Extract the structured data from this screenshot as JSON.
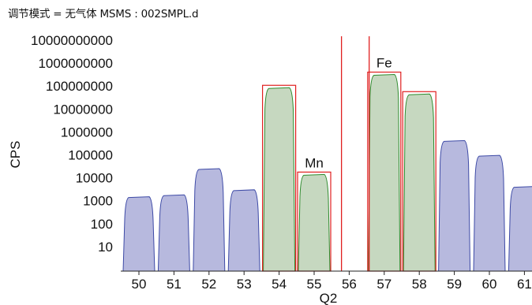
{
  "title": "调节模式 = 无气体 MSMS : 002SMPL.d",
  "chart_data": {
    "type": "area",
    "xlabel": "Q2",
    "ylabel": "CPS",
    "yscale": "log",
    "xlim": [
      49.5,
      61.4
    ],
    "ylim_exp": [
      0,
      10
    ],
    "xticks": [
      50,
      51,
      52,
      53,
      54,
      55,
      56,
      57,
      58,
      59,
      60,
      61
    ],
    "xtick_labels": [
      "50",
      "51",
      "52",
      "53",
      "54",
      "55",
      "56",
      "57",
      "58",
      "59",
      "60",
      "61"
    ],
    "ytick_labels": [
      "10",
      "100",
      "1000",
      "10000",
      "100000",
      "1000000",
      "10000000",
      "100000000",
      "1000000000",
      "10000000000"
    ],
    "peaks": [
      {
        "mass": 50,
        "value": 1500,
        "highlighted": false
      },
      {
        "mass": 51,
        "value": 1800,
        "highlighted": false
      },
      {
        "mass": 52,
        "value": 25000,
        "highlighted": false
      },
      {
        "mass": 53,
        "value": 3000,
        "highlighted": false
      },
      {
        "mass": 54,
        "value": 85000000,
        "highlighted": true
      },
      {
        "mass": 55,
        "value": 14000,
        "highlighted": true,
        "label": "Mn"
      },
      {
        "mass": 57,
        "value": 320000000,
        "highlighted": true,
        "label": "Fe"
      },
      {
        "mass": 58,
        "value": 45000000,
        "highlighted": true
      },
      {
        "mass": 59,
        "value": 420000,
        "highlighted": false
      },
      {
        "mass": 60,
        "value": 95000,
        "highlighted": false
      },
      {
        "mass": 61,
        "value": 4200,
        "highlighted": false
      }
    ],
    "red_vlines": [
      55.78,
      56.57
    ],
    "colors": {
      "normal_fill": "#b7b9de",
      "normal_line": "#3d4aa6",
      "highlight_fill": "#c6d8c0",
      "highlight_line": "#2e8b2e",
      "box": "#e02020"
    }
  }
}
